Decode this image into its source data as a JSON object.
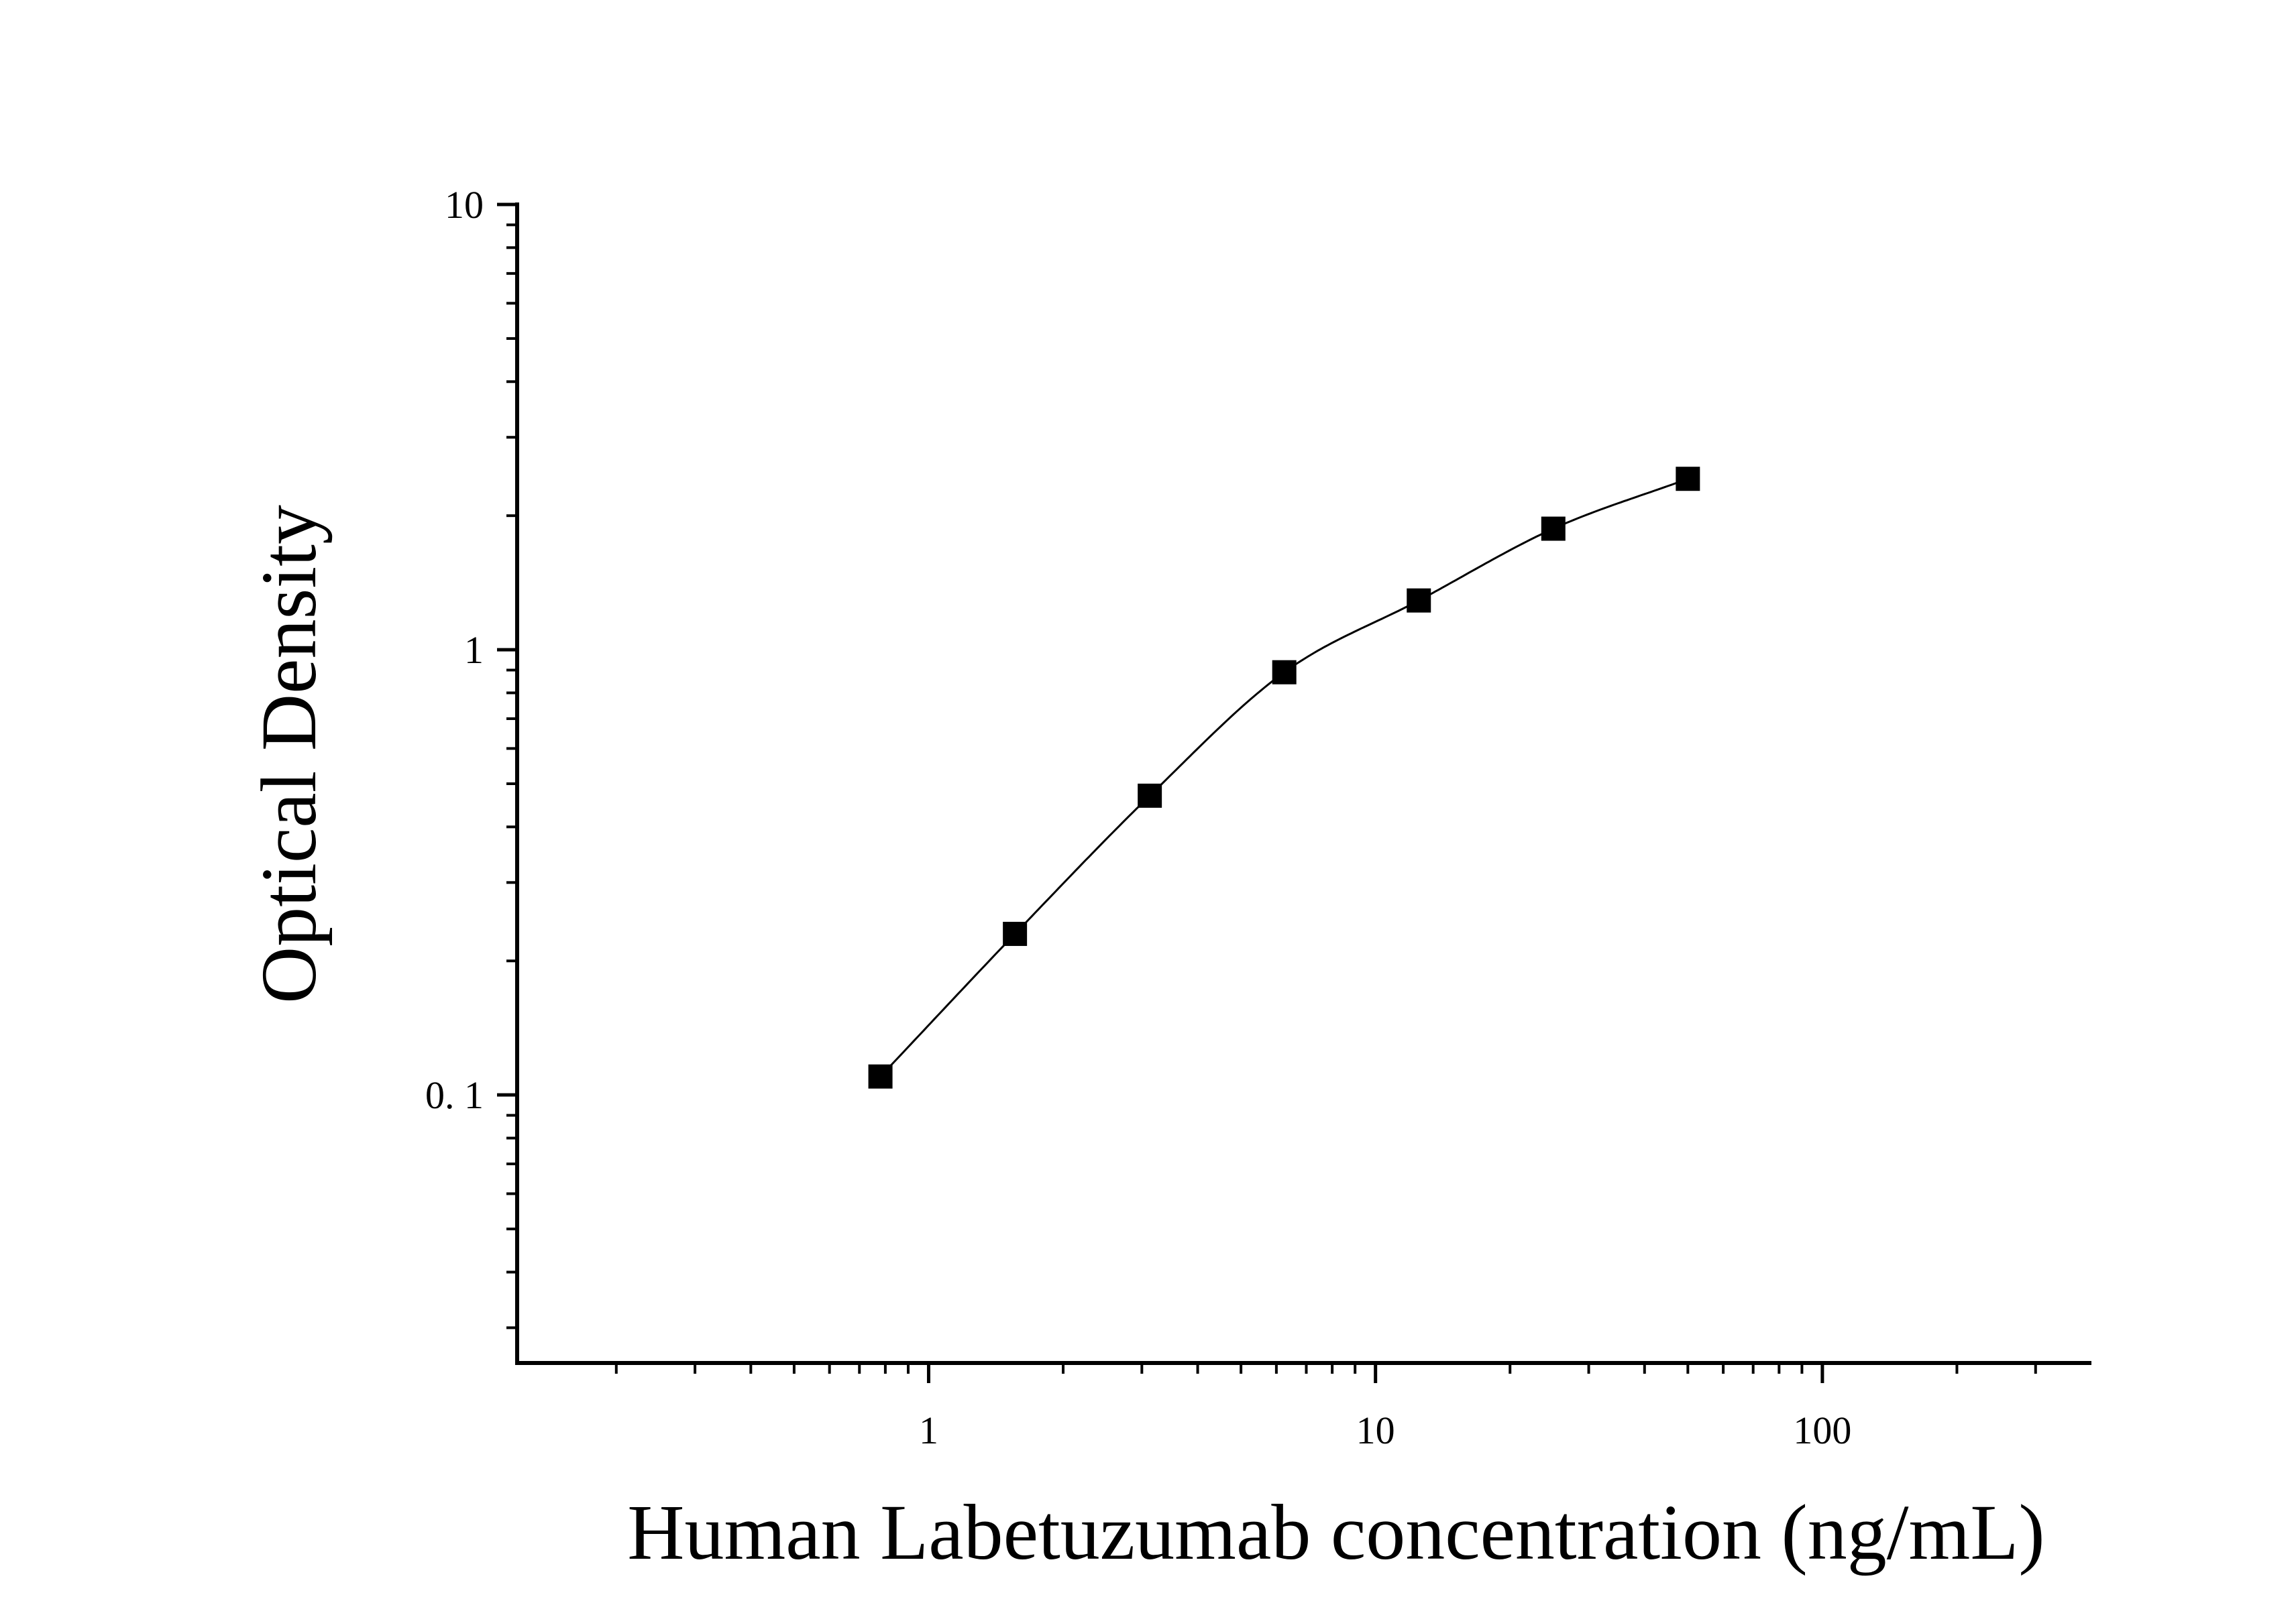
{
  "chart_data": {
    "type": "scatter",
    "title": "",
    "xlabel": "Human Labetuzumab concentration (ng/mL)",
    "ylabel": "Optical Density",
    "x_scale": "log",
    "y_scale": "log",
    "xlim": [
      0.12,
      400
    ],
    "ylim": [
      0.025,
      10
    ],
    "x_ticks": [
      {
        "value": 1,
        "label": "1"
      },
      {
        "value": 10,
        "label": "10"
      },
      {
        "value": 100,
        "label": "100"
      }
    ],
    "y_ticks": [
      {
        "value": 0.1,
        "label": "0. 1"
      },
      {
        "value": 1,
        "label": "1"
      },
      {
        "value": 10,
        "label": "10"
      }
    ],
    "grid": false,
    "legend": "none",
    "marker_color": "#000000",
    "curve_color": "#000000",
    "series": [
      {
        "marker": "square",
        "x": [
          0.78,
          1.56,
          3.125,
          6.25,
          12.5,
          25,
          50
        ],
        "y": [
          0.11,
          0.23,
          0.47,
          0.89,
          1.29,
          1.87,
          2.42
        ]
      }
    ],
    "fit_curve": {
      "x_range": [
        0.78,
        50
      ]
    }
  }
}
